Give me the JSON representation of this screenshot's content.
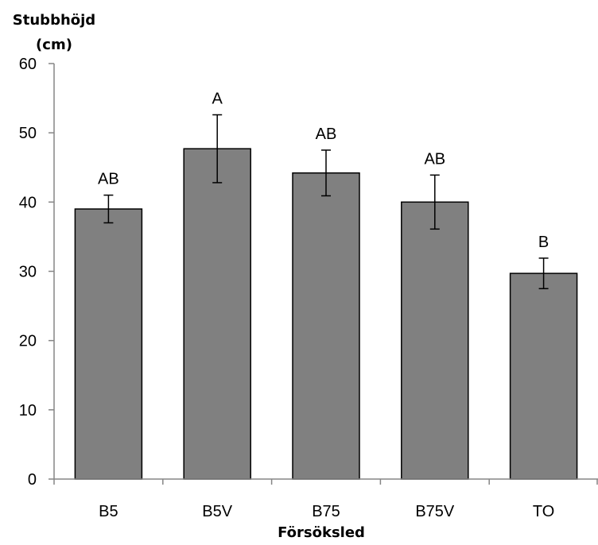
{
  "chart_data": {
    "type": "bar",
    "title": "",
    "ylabel_lines": [
      "Stubbhöjd",
      "(cm)"
    ],
    "xlabel": "Försöksled",
    "categories": [
      "B5",
      "B5V",
      "B75",
      "B75V",
      "TO"
    ],
    "values": [
      39.0,
      47.7,
      44.2,
      40.0,
      29.7
    ],
    "errors": [
      2.0,
      4.9,
      3.3,
      3.9,
      2.2
    ],
    "group_labels": [
      "AB",
      "A",
      "AB",
      "AB",
      "B"
    ],
    "ylim": [
      0,
      60
    ],
    "yticks": [
      0,
      10,
      20,
      30,
      40,
      50,
      60
    ],
    "grid": false,
    "legend": "none",
    "bar_color": "#808080",
    "bar_edge_color": "#000000",
    "axis_color": "#868686"
  }
}
